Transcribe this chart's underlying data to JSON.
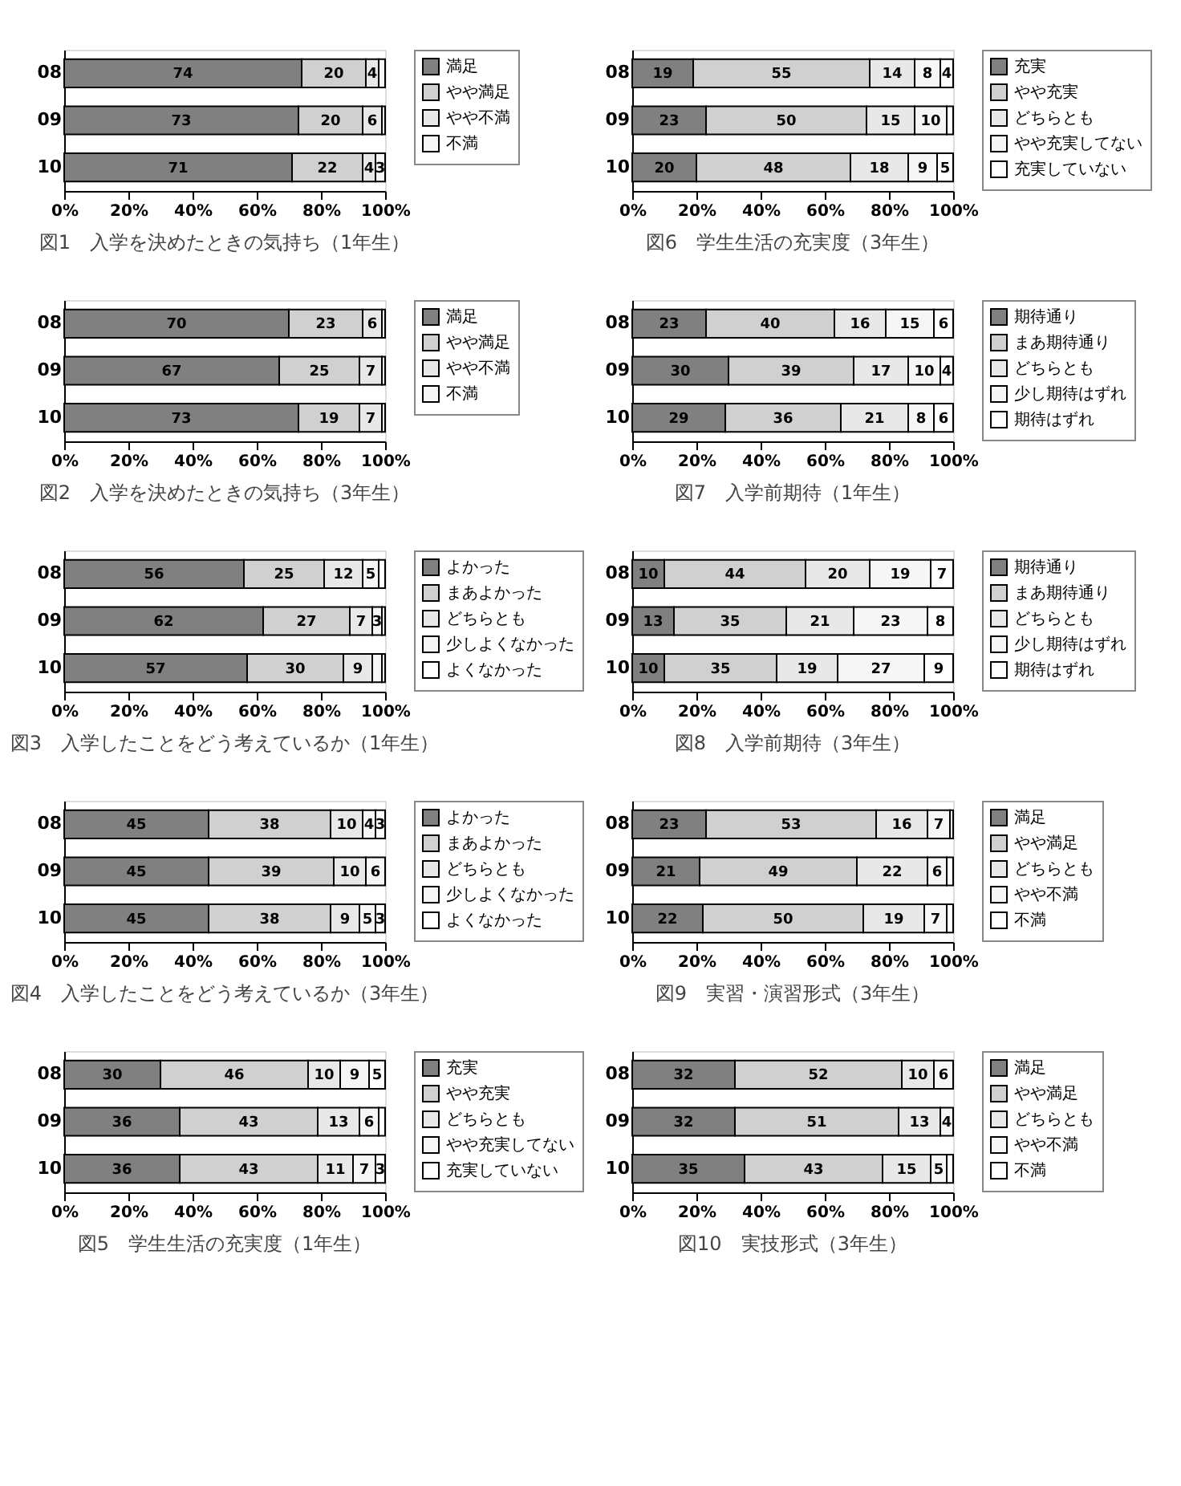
{
  "chart_data": [
    {
      "type": "bar",
      "orientation": "horizontal",
      "stacked": true,
      "title": "図1　入学を決めたときの気持ち（1年生）",
      "categories": [
        "08",
        "09",
        "10"
      ],
      "xlim": [
        0,
        100
      ],
      "xticks": [
        {
          "value": 0,
          "label": "0%"
        },
        {
          "value": 20,
          "label": "20%"
        },
        {
          "value": 40,
          "label": "40%"
        },
        {
          "value": 60,
          "label": "60%"
        },
        {
          "value": 80,
          "label": "80%"
        },
        {
          "value": 100,
          "label": "100%"
        }
      ],
      "legend": "right",
      "grid": false,
      "series": [
        {
          "name": "満足",
          "color": "#808080",
          "values": [
            74,
            73,
            71
          ],
          "value_labels": [
            "74",
            "73",
            "71"
          ]
        },
        {
          "name": "やや満足",
          "color": "#d0d0d0",
          "values": [
            20,
            20,
            22
          ],
          "value_labels": [
            "20",
            "20",
            "22"
          ]
        },
        {
          "name": "やや不満",
          "color": "#e8e8e8",
          "values": [
            4,
            6,
            4
          ],
          "value_labels": [
            "4",
            "6",
            "4"
          ]
        },
        {
          "name": "不満",
          "color": "#f6f6f6",
          "values": [
            2,
            1,
            3
          ],
          "value_labels": [
            null,
            null,
            "3"
          ]
        }
      ]
    },
    {
      "type": "bar",
      "orientation": "horizontal",
      "stacked": true,
      "title": "図2　入学を決めたときの気持ち（3年生）",
      "categories": [
        "08",
        "09",
        "10"
      ],
      "xlim": [
        0,
        100
      ],
      "xticks": [
        {
          "value": 0,
          "label": "0%"
        },
        {
          "value": 20,
          "label": "20%"
        },
        {
          "value": 40,
          "label": "40%"
        },
        {
          "value": 60,
          "label": "60%"
        },
        {
          "value": 80,
          "label": "80%"
        },
        {
          "value": 100,
          "label": "100%"
        }
      ],
      "legend": "right",
      "grid": false,
      "series": [
        {
          "name": "満足",
          "color": "#808080",
          "values": [
            70,
            67,
            73
          ],
          "value_labels": [
            "70",
            "67",
            "73"
          ]
        },
        {
          "name": "やや満足",
          "color": "#d0d0d0",
          "values": [
            23,
            25,
            19
          ],
          "value_labels": [
            "23",
            "25",
            "19"
          ]
        },
        {
          "name": "やや不満",
          "color": "#e8e8e8",
          "values": [
            6,
            7,
            7
          ],
          "value_labels": [
            "6",
            "7",
            "7"
          ]
        },
        {
          "name": "不満",
          "color": "#f6f6f6",
          "values": [
            1,
            1,
            1
          ],
          "value_labels": [
            null,
            null,
            null
          ]
        }
      ]
    },
    {
      "type": "bar",
      "orientation": "horizontal",
      "stacked": true,
      "title": "図3　入学したことをどう考えているか（1年生）",
      "categories": [
        "08",
        "09",
        "10"
      ],
      "xlim": [
        0,
        100
      ],
      "xticks": [
        {
          "value": 0,
          "label": "0%"
        },
        {
          "value": 20,
          "label": "20%"
        },
        {
          "value": 40,
          "label": "40%"
        },
        {
          "value": 60,
          "label": "60%"
        },
        {
          "value": 80,
          "label": "80%"
        },
        {
          "value": 100,
          "label": "100%"
        }
      ],
      "legend": "right",
      "grid": false,
      "series": [
        {
          "name": "よかった",
          "color": "#808080",
          "values": [
            56,
            62,
            57
          ],
          "value_labels": [
            "56",
            "62",
            "57"
          ]
        },
        {
          "name": "まあよかった",
          "color": "#d0d0d0",
          "values": [
            25,
            27,
            30
          ],
          "value_labels": [
            "25",
            "27",
            "30"
          ]
        },
        {
          "name": "どちらとも",
          "color": "#e8e8e8",
          "values": [
            12,
            7,
            9
          ],
          "value_labels": [
            "12",
            "7",
            "9"
          ]
        },
        {
          "name": "少しよくなかった",
          "color": "#f6f6f6",
          "values": [
            5,
            3,
            3
          ],
          "value_labels": [
            "5",
            "3",
            null
          ]
        },
        {
          "name": "よくなかった",
          "color": "#ffffff",
          "values": [
            2,
            1,
            1
          ],
          "value_labels": [
            null,
            null,
            null
          ]
        }
      ]
    },
    {
      "type": "bar",
      "orientation": "horizontal",
      "stacked": true,
      "title": "図4　入学したことをどう考えているか（3年生）",
      "categories": [
        "08",
        "09",
        "10"
      ],
      "xlim": [
        0,
        100
      ],
      "xticks": [
        {
          "value": 0,
          "label": "0%"
        },
        {
          "value": 20,
          "label": "20%"
        },
        {
          "value": 40,
          "label": "40%"
        },
        {
          "value": 60,
          "label": "60%"
        },
        {
          "value": 80,
          "label": "80%"
        },
        {
          "value": 100,
          "label": "100%"
        }
      ],
      "legend": "right",
      "grid": false,
      "series": [
        {
          "name": "よかった",
          "color": "#808080",
          "values": [
            45,
            45,
            45
          ],
          "value_labels": [
            "45",
            "45",
            "45"
          ]
        },
        {
          "name": "まあよかった",
          "color": "#d0d0d0",
          "values": [
            38,
            39,
            38
          ],
          "value_labels": [
            "38",
            "39",
            "38"
          ]
        },
        {
          "name": "どちらとも",
          "color": "#e8e8e8",
          "values": [
            10,
            10,
            9
          ],
          "value_labels": [
            "10",
            "10",
            "9"
          ]
        },
        {
          "name": "少しよくなかった",
          "color": "#f6f6f6",
          "values": [
            4,
            6,
            5
          ],
          "value_labels": [
            "4",
            "6",
            "5"
          ]
        },
        {
          "name": "よくなかった",
          "color": "#ffffff",
          "values": [
            3,
            0,
            3
          ],
          "value_labels": [
            "3",
            null,
            "3"
          ]
        }
      ]
    },
    {
      "type": "bar",
      "orientation": "horizontal",
      "stacked": true,
      "title": "図5　学生生活の充実度（1年生）",
      "categories": [
        "08",
        "09",
        "10"
      ],
      "xlim": [
        0,
        100
      ],
      "xticks": [
        {
          "value": 0,
          "label": "0%"
        },
        {
          "value": 20,
          "label": "20%"
        },
        {
          "value": 40,
          "label": "40%"
        },
        {
          "value": 60,
          "label": "60%"
        },
        {
          "value": 80,
          "label": "80%"
        },
        {
          "value": 100,
          "label": "100%"
        }
      ],
      "legend": "right",
      "grid": false,
      "series": [
        {
          "name": "充実",
          "color": "#808080",
          "values": [
            30,
            36,
            36
          ],
          "value_labels": [
            "30",
            "36",
            "36"
          ]
        },
        {
          "name": "やや充実",
          "color": "#d0d0d0",
          "values": [
            46,
            43,
            43
          ],
          "value_labels": [
            "46",
            "43",
            "43"
          ]
        },
        {
          "name": "どちらとも",
          "color": "#e8e8e8",
          "values": [
            10,
            13,
            11
          ],
          "value_labels": [
            "10",
            "13",
            "11"
          ]
        },
        {
          "name": "やや充実してない",
          "color": "#f6f6f6",
          "values": [
            9,
            6,
            7
          ],
          "value_labels": [
            "9",
            "6",
            "7"
          ]
        },
        {
          "name": "充実していない",
          "color": "#ffffff",
          "values": [
            5,
            2,
            3
          ],
          "value_labels": [
            "5",
            null,
            "3"
          ]
        }
      ]
    },
    {
      "type": "bar",
      "orientation": "horizontal",
      "stacked": true,
      "title": "図6　学生生活の充実度（3年生）",
      "categories": [
        "08",
        "09",
        "10"
      ],
      "xlim": [
        0,
        100
      ],
      "xticks": [
        {
          "value": 0,
          "label": "0%"
        },
        {
          "value": 20,
          "label": "20%"
        },
        {
          "value": 40,
          "label": "40%"
        },
        {
          "value": 60,
          "label": "60%"
        },
        {
          "value": 80,
          "label": "80%"
        },
        {
          "value": 100,
          "label": "100%"
        }
      ],
      "legend": "right",
      "grid": false,
      "series": [
        {
          "name": "充実",
          "color": "#808080",
          "values": [
            19,
            23,
            20
          ],
          "value_labels": [
            "19",
            "23",
            "20"
          ]
        },
        {
          "name": "やや充実",
          "color": "#d0d0d0",
          "values": [
            55,
            50,
            48
          ],
          "value_labels": [
            "55",
            "50",
            "48"
          ]
        },
        {
          "name": "どちらとも",
          "color": "#e8e8e8",
          "values": [
            14,
            15,
            18
          ],
          "value_labels": [
            "14",
            "15",
            "18"
          ]
        },
        {
          "name": "やや充実してない",
          "color": "#f6f6f6",
          "values": [
            8,
            10,
            9
          ],
          "value_labels": [
            "8",
            "10",
            "9"
          ]
        },
        {
          "name": "充実していない",
          "color": "#ffffff",
          "values": [
            4,
            2,
            5
          ],
          "value_labels": [
            "4",
            null,
            "5"
          ]
        }
      ]
    },
    {
      "type": "bar",
      "orientation": "horizontal",
      "stacked": true,
      "title": "図7　入学前期待（1年生）",
      "categories": [
        "08",
        "09",
        "10"
      ],
      "xlim": [
        0,
        100
      ],
      "xticks": [
        {
          "value": 0,
          "label": "0%"
        },
        {
          "value": 20,
          "label": "20%"
        },
        {
          "value": 40,
          "label": "40%"
        },
        {
          "value": 60,
          "label": "60%"
        },
        {
          "value": 80,
          "label": "80%"
        },
        {
          "value": 100,
          "label": "100%"
        }
      ],
      "legend": "right",
      "grid": false,
      "series": [
        {
          "name": "期待通り",
          "color": "#808080",
          "values": [
            23,
            30,
            29
          ],
          "value_labels": [
            "23",
            "30",
            "29"
          ]
        },
        {
          "name": "まあ期待通り",
          "color": "#d0d0d0",
          "values": [
            40,
            39,
            36
          ],
          "value_labels": [
            "40",
            "39",
            "36"
          ]
        },
        {
          "name": "どちらとも",
          "color": "#e8e8e8",
          "values": [
            16,
            17,
            21
          ],
          "value_labels": [
            "16",
            "17",
            "21"
          ]
        },
        {
          "name": "少し期待はずれ",
          "color": "#f6f6f6",
          "values": [
            15,
            10,
            8
          ],
          "value_labels": [
            "15",
            "10",
            "8"
          ]
        },
        {
          "name": "期待はずれ",
          "color": "#ffffff",
          "values": [
            6,
            4,
            6
          ],
          "value_labels": [
            "6",
            "4",
            "6"
          ]
        }
      ]
    },
    {
      "type": "bar",
      "orientation": "horizontal",
      "stacked": true,
      "title": "図8　入学前期待（3年生）",
      "categories": [
        "08",
        "09",
        "10"
      ],
      "xlim": [
        0,
        100
      ],
      "xticks": [
        {
          "value": 0,
          "label": "0%"
        },
        {
          "value": 20,
          "label": "20%"
        },
        {
          "value": 40,
          "label": "40%"
        },
        {
          "value": 60,
          "label": "60%"
        },
        {
          "value": 80,
          "label": "80%"
        },
        {
          "value": 100,
          "label": "100%"
        }
      ],
      "legend": "right",
      "grid": false,
      "series": [
        {
          "name": "期待通り",
          "color": "#808080",
          "values": [
            10,
            13,
            10
          ],
          "value_labels": [
            "10",
            "13",
            "10"
          ]
        },
        {
          "name": "まあ期待通り",
          "color": "#d0d0d0",
          "values": [
            44,
            35,
            35
          ],
          "value_labels": [
            "44",
            "35",
            "35"
          ]
        },
        {
          "name": "どちらとも",
          "color": "#e8e8e8",
          "values": [
            20,
            21,
            19
          ],
          "value_labels": [
            "20",
            "21",
            "19"
          ]
        },
        {
          "name": "少し期待はずれ",
          "color": "#f6f6f6",
          "values": [
            19,
            23,
            27
          ],
          "value_labels": [
            "19",
            "23",
            "27"
          ]
        },
        {
          "name": "期待はずれ",
          "color": "#ffffff",
          "values": [
            7,
            8,
            9
          ],
          "value_labels": [
            "7",
            "8",
            "9"
          ]
        }
      ]
    },
    {
      "type": "bar",
      "orientation": "horizontal",
      "stacked": true,
      "title": "図9　実習・演習形式（3年生）",
      "categories": [
        "08",
        "09",
        "10"
      ],
      "xlim": [
        0,
        100
      ],
      "xticks": [
        {
          "value": 0,
          "label": "0%"
        },
        {
          "value": 20,
          "label": "20%"
        },
        {
          "value": 40,
          "label": "40%"
        },
        {
          "value": 60,
          "label": "60%"
        },
        {
          "value": 80,
          "label": "80%"
        },
        {
          "value": 100,
          "label": "100%"
        }
      ],
      "legend": "right",
      "grid": false,
      "series": [
        {
          "name": "満足",
          "color": "#808080",
          "values": [
            23,
            21,
            22
          ],
          "value_labels": [
            "23",
            "21",
            "22"
          ]
        },
        {
          "name": "やや満足",
          "color": "#d0d0d0",
          "values": [
            53,
            49,
            50
          ],
          "value_labels": [
            "53",
            "49",
            "50"
          ]
        },
        {
          "name": "どちらとも",
          "color": "#e8e8e8",
          "values": [
            16,
            22,
            19
          ],
          "value_labels": [
            "16",
            "22",
            "19"
          ]
        },
        {
          "name": "やや不満",
          "color": "#f6f6f6",
          "values": [
            7,
            6,
            7
          ],
          "value_labels": [
            "7",
            "6",
            "7"
          ]
        },
        {
          "name": "不満",
          "color": "#ffffff",
          "values": [
            1,
            2,
            2
          ],
          "value_labels": [
            null,
            null,
            null
          ]
        }
      ]
    },
    {
      "type": "bar",
      "orientation": "horizontal",
      "stacked": true,
      "title": "図10　実技形式（3年生）",
      "categories": [
        "08",
        "09",
        "10"
      ],
      "xlim": [
        0,
        100
      ],
      "xticks": [
        {
          "value": 0,
          "label": "0%"
        },
        {
          "value": 20,
          "label": "20%"
        },
        {
          "value": 40,
          "label": "40%"
        },
        {
          "value": 60,
          "label": "60%"
        },
        {
          "value": 80,
          "label": "80%"
        },
        {
          "value": 100,
          "label": "100%"
        }
      ],
      "legend": "right",
      "grid": false,
      "series": [
        {
          "name": "満足",
          "color": "#808080",
          "values": [
            32,
            32,
            35
          ],
          "value_labels": [
            "32",
            "32",
            "35"
          ]
        },
        {
          "name": "やや満足",
          "color": "#d0d0d0",
          "values": [
            52,
            51,
            43
          ],
          "value_labels": [
            "52",
            "51",
            "43"
          ]
        },
        {
          "name": "どちらとも",
          "color": "#e8e8e8",
          "values": [
            10,
            13,
            15
          ],
          "value_labels": [
            "10",
            "13",
            "15"
          ]
        },
        {
          "name": "やや不満",
          "color": "#f6f6f6",
          "values": [
            6,
            4,
            5
          ],
          "value_labels": [
            "6",
            "4",
            "5"
          ]
        },
        {
          "name": "不満",
          "color": "#ffffff",
          "values": [
            0,
            0,
            2
          ],
          "value_labels": [
            null,
            null,
            null
          ]
        }
      ]
    }
  ]
}
